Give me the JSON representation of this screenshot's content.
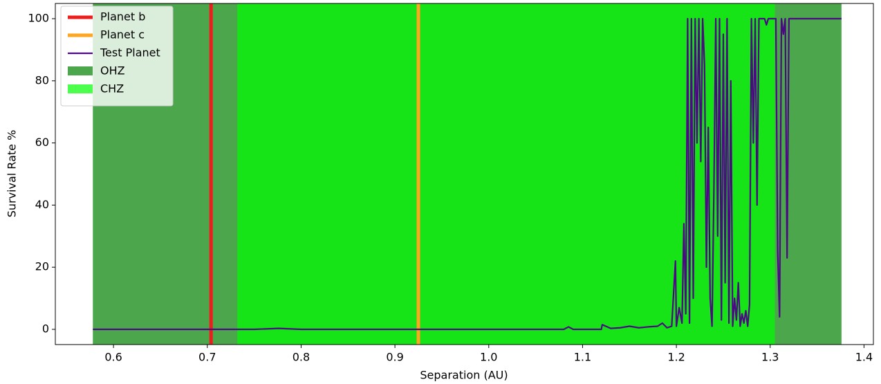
{
  "chart_data": {
    "type": "line",
    "x_label": "Separation (AU)",
    "y_label": "Survival Rate %",
    "xlim": [
      0.538,
      1.41
    ],
    "ylim": [
      -4.9,
      104.9
    ],
    "xticks": [
      0.6,
      0.7,
      0.8,
      0.9,
      {
        "value": 1,
        "label": "1.0"
      },
      1.1,
      1.2,
      1.3,
      1.4
    ],
    "yticks": [
      0,
      20,
      40,
      60,
      80,
      100
    ],
    "legend": "upper left",
    "vlines": [
      {
        "name": "Planet b",
        "color": "#ee1c1c",
        "x": 0.704
      },
      {
        "name": "Planet c",
        "color": "#ffa51f",
        "x": 0.925
      }
    ],
    "series": [
      {
        "name": "Test Planet",
        "color": "#4b0a82",
        "x": [
          0.578,
          0.6,
          0.65,
          0.7,
          0.75,
          0.776,
          0.8,
          0.85,
          0.9,
          0.95,
          1.0,
          1.05,
          1.08,
          1.085,
          1.09,
          1.1,
          1.12,
          1.121,
          1.13,
          1.14,
          1.15,
          1.16,
          1.17,
          1.18,
          1.185,
          1.19,
          1.195,
          1.199,
          1.2,
          1.203,
          1.206,
          1.208,
          1.21,
          1.212,
          1.214,
          1.216,
          1.218,
          1.22,
          1.222,
          1.224,
          1.226,
          1.228,
          1.23,
          1.232,
          1.234,
          1.236,
          1.238,
          1.24,
          1.242,
          1.244,
          1.246,
          1.248,
          1.25,
          1.252,
          1.254,
          1.256,
          1.258,
          1.26,
          1.262,
          1.264,
          1.266,
          1.268,
          1.27,
          1.272,
          1.274,
          1.276,
          1.278,
          1.28,
          1.282,
          1.284,
          1.286,
          1.288,
          1.29,
          1.292,
          1.294,
          1.296,
          1.298,
          1.3,
          1.302,
          1.304,
          1.306,
          1.308,
          1.31,
          1.312,
          1.314,
          1.316,
          1.318,
          1.32,
          1.376
        ],
        "values": [
          0,
          0,
          0,
          0,
          0,
          0.3,
          0,
          0,
          0,
          0,
          0,
          0,
          0,
          0.8,
          0,
          0,
          0,
          1.5,
          0.3,
          0.5,
          1,
          0.5,
          0.8,
          1,
          2,
          0.5,
          1,
          22,
          1,
          7,
          2,
          34,
          5,
          100,
          2,
          100,
          10,
          100,
          60,
          100,
          54,
          100,
          85,
          20,
          65,
          10,
          1,
          45,
          100,
          30,
          100,
          3,
          95,
          15,
          100,
          2,
          80,
          1,
          10,
          3,
          15,
          1,
          5,
          2,
          6,
          1,
          8,
          100,
          60,
          100,
          40,
          100,
          100,
          100,
          100,
          98,
          100,
          100,
          100,
          100,
          100,
          25,
          4,
          100,
          95,
          100,
          23,
          100,
          100
        ]
      }
    ],
    "spans": [
      {
        "name": "OHZ",
        "color": "#008000",
        "alpha": 0.7,
        "start": 0.578,
        "end": 1.376
      },
      {
        "name": "CHZ",
        "color": "#00ff00",
        "alpha": 0.7,
        "start": 0.732,
        "end": 1.305
      }
    ]
  }
}
